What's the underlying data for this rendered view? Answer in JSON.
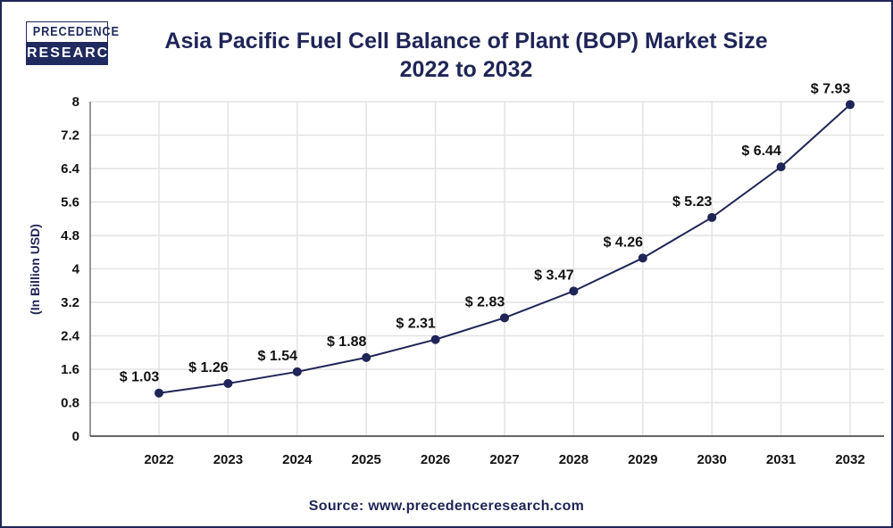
{
  "logo": {
    "line1": "PRECEDENCE",
    "line2": "RESEARCH"
  },
  "chart_data": {
    "type": "line",
    "title": "Asia Pacific Fuel Cell Balance of Plant (BOP) Market Size",
    "subtitle": "2022 to 2032",
    "xlabel": "",
    "ylabel": "(In Billion USD)",
    "categories": [
      "2022",
      "2023",
      "2024",
      "2025",
      "2026",
      "2027",
      "2028",
      "2029",
      "2030",
      "2031",
      "2032"
    ],
    "values": [
      1.03,
      1.26,
      1.54,
      1.88,
      2.31,
      2.83,
      3.47,
      4.26,
      5.23,
      6.44,
      7.93
    ],
    "data_labels": [
      "$ 1.03",
      "$ 1.26",
      "$ 1.54",
      "$ 1.88",
      "$ 2.31",
      "$ 2.83",
      "$ 3.47",
      "$ 4.26",
      "$ 5.23",
      "$ 6.44",
      "$ 7.93"
    ],
    "ylim": [
      0,
      8
    ],
    "yticks": [
      "0",
      "0.8",
      "1.6",
      "2.4",
      "3.2",
      "4",
      "4.8",
      "5.6",
      "6.4",
      "7.2",
      "8"
    ],
    "grid": true,
    "legend": "none",
    "line_color": "#1f2556"
  },
  "source": "Source: www.precedenceresearch.com"
}
